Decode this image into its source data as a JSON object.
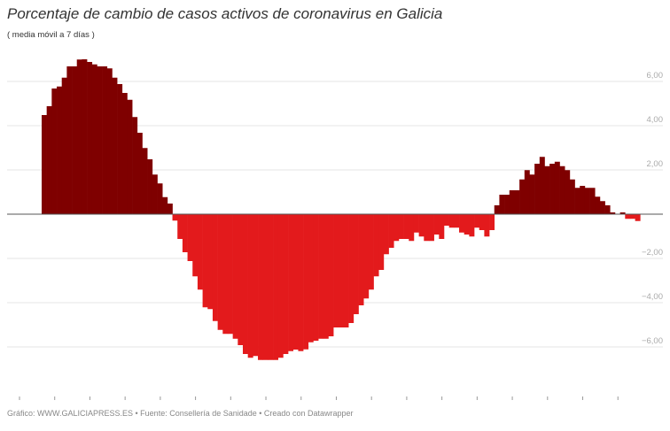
{
  "chart_data": {
    "type": "bar",
    "title": "Porcentaje de cambio de casos activos de coronavirus en Galicia",
    "subtitle": "( media móvil a 7 días )",
    "xlabel": "",
    "ylabel": "",
    "ylim": [
      -8,
      7
    ],
    "yticks": [
      6,
      4,
      2,
      -2,
      -4,
      -6
    ],
    "ytick_labels": [
      "6,00",
      "4,00",
      "2,00",
      "−2,00",
      "−4,00",
      "−6,00"
    ],
    "grid": true,
    "colors": {
      "positive": "#7f0000",
      "negative": "#e31a1c"
    },
    "values": [
      4.48,
      4.88,
      5.68,
      5.77,
      6.17,
      6.68,
      6.68,
      6.99,
      7.0,
      6.88,
      6.77,
      6.68,
      6.68,
      6.59,
      6.17,
      5.88,
      5.48,
      5.17,
      4.39,
      3.68,
      2.99,
      2.48,
      1.79,
      1.39,
      0.77,
      0.48,
      -0.29,
      -1.12,
      -1.72,
      -2.12,
      -2.81,
      -3.41,
      -4.21,
      -4.29,
      -4.83,
      -5.23,
      -5.41,
      -5.41,
      -5.63,
      -5.92,
      -6.32,
      -6.49,
      -6.41,
      -6.59,
      -6.59,
      -6.59,
      -6.59,
      -6.49,
      -6.32,
      -6.19,
      -6.12,
      -6.19,
      -6.11,
      -5.79,
      -5.72,
      -5.63,
      -5.63,
      -5.52,
      -5.12,
      -5.12,
      -5.12,
      -4.92,
      -4.52,
      -4.12,
      -3.81,
      -3.41,
      -2.81,
      -2.52,
      -1.81,
      -1.52,
      -1.21,
      -1.12,
      -1.12,
      -1.21,
      -0.83,
      -1.01,
      -1.21,
      -1.21,
      -0.92,
      -1.12,
      -0.52,
      -0.61,
      -0.61,
      -0.83,
      -0.92,
      -1.01,
      -0.61,
      -0.72,
      -1.01,
      -0.72,
      0.4,
      0.88,
      0.88,
      1.08,
      1.08,
      1.57,
      1.99,
      1.79,
      2.28,
      2.59,
      2.17,
      2.28,
      2.37,
      2.17,
      1.99,
      1.57,
      1.19,
      1.28,
      1.19,
      1.19,
      0.79,
      0.59,
      0.4,
      0.08,
      0.01,
      0.08,
      -0.21,
      -0.21,
      -0.31
    ]
  },
  "footer": "Gráfico: WWW.GALICIAPRESS.ES • Fuente: Consellería de Sanidade • Creado con Datawrapper"
}
